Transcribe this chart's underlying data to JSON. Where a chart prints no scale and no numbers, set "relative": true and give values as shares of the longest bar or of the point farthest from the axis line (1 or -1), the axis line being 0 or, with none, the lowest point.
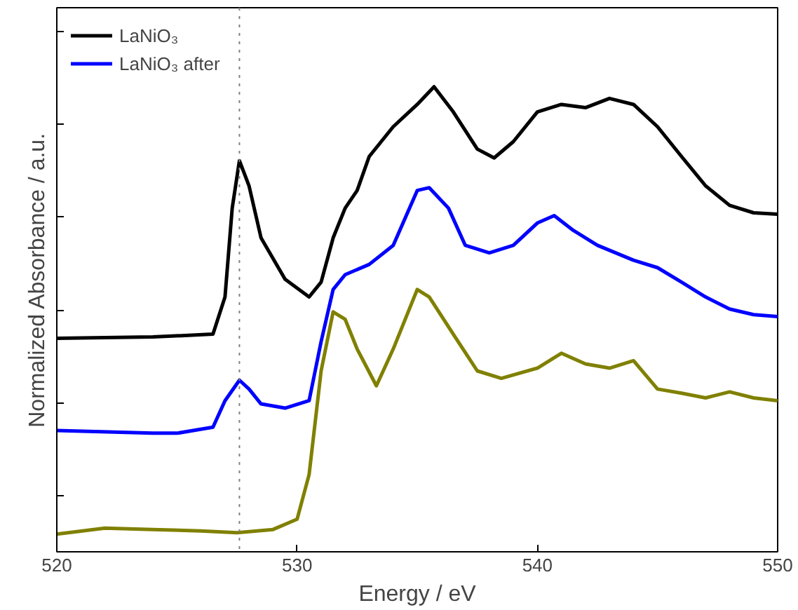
{
  "chart_data": {
    "type": "line",
    "relative": true,
    "xlabel": "Energy / eV",
    "ylabel": "Normalized Absorbance / a.u.",
    "xlim": [
      520,
      550
    ],
    "xticks": [
      520,
      530,
      540,
      550
    ],
    "legend": "top left",
    "grid": false,
    "marker": "none",
    "line_style": "solid",
    "ref_lines": [
      {
        "axis": "x",
        "value": 527.6,
        "color": "#808080",
        "line_style": "dotted"
      }
    ],
    "series": [
      {
        "name": "LaNiO₃",
        "color": "#000000",
        "x": [
          520,
          524,
          526.5,
          527,
          527.3,
          527.6,
          528,
          528.5,
          529.5,
          530.5,
          531,
          531.5,
          532,
          532.5,
          533,
          534,
          535,
          535.7,
          536.5,
          537.5,
          538.2,
          539,
          540,
          541,
          542,
          543,
          544,
          545,
          546,
          547,
          548,
          549,
          550
        ],
        "values": [
          0.459,
          0.462,
          0.468,
          0.548,
          0.739,
          0.841,
          0.787,
          0.675,
          0.586,
          0.548,
          0.58,
          0.675,
          0.739,
          0.777,
          0.85,
          0.914,
          0.962,
          1.0,
          0.946,
          0.866,
          0.847,
          0.882,
          0.946,
          0.962,
          0.955,
          0.975,
          0.962,
          0.914,
          0.85,
          0.787,
          0.745,
          0.729,
          0.726
        ]
      },
      {
        "name": "LaNiO₃ after",
        "color": "#0000ff",
        "x": [
          520,
          524,
          525,
          526.5,
          527,
          527.6,
          528,
          528.5,
          529.5,
          530.5,
          531,
          531.5,
          532,
          533,
          534,
          535,
          535.5,
          536.3,
          537,
          538,
          539,
          540,
          540.7,
          541.5,
          542.5,
          544,
          545,
          546,
          547,
          548,
          549,
          550
        ],
        "values": [
          0.261,
          0.255,
          0.255,
          0.268,
          0.325,
          0.369,
          0.35,
          0.318,
          0.309,
          0.325,
          0.452,
          0.564,
          0.596,
          0.618,
          0.659,
          0.777,
          0.783,
          0.739,
          0.659,
          0.643,
          0.659,
          0.707,
          0.723,
          0.691,
          0.659,
          0.627,
          0.611,
          0.58,
          0.548,
          0.522,
          0.51,
          0.506
        ]
      },
      {
        "color": "#808000",
        "x": [
          520,
          522,
          524,
          526,
          527.5,
          529,
          530,
          530.5,
          531,
          531.5,
          532,
          532.5,
          533.3,
          534,
          535,
          535.5,
          536.5,
          537.5,
          538.5,
          540,
          541,
          542,
          543,
          544,
          545,
          546,
          547,
          548,
          549,
          550
        ],
        "values": [
          0.038,
          0.051,
          0.048,
          0.045,
          0.041,
          0.048,
          0.07,
          0.166,
          0.389,
          0.516,
          0.5,
          0.436,
          0.357,
          0.436,
          0.564,
          0.548,
          0.468,
          0.389,
          0.373,
          0.395,
          0.427,
          0.404,
          0.395,
          0.411,
          0.35,
          0.341,
          0.331,
          0.344,
          0.331,
          0.325
        ]
      }
    ]
  }
}
